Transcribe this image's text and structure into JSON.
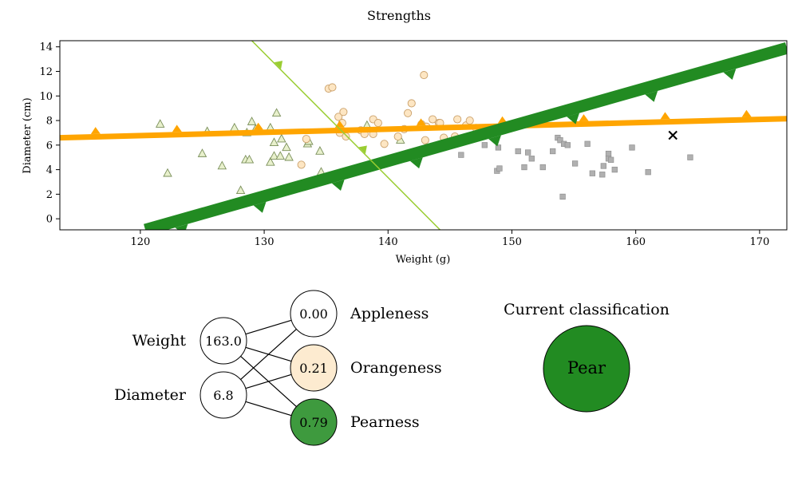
{
  "colors": {
    "apple": "#9acd32",
    "orange": "#ffa500",
    "pear": "#228b22",
    "apple_fill": "#e8f0cc",
    "orange_fill": "#fde6c3",
    "pear_fill": "#b0b0b0",
    "orangeness_node": "#fdebd0",
    "pearness_node": "#3e9a3e",
    "classification": "#228b22"
  },
  "chart_data": {
    "type": "scatter",
    "title": "Strengths",
    "xlabel": "Weight (g)",
    "ylabel": "Diameter (cm)",
    "xlim": [
      113.5,
      172.2
    ],
    "ylim": [
      -0.9,
      14.5
    ],
    "xticks": [
      120,
      130,
      140,
      150,
      160,
      170
    ],
    "yticks": [
      0,
      2,
      4,
      6,
      8,
      10,
      12,
      14
    ],
    "grid": false,
    "legend": "none",
    "series": [
      {
        "kind": "apple",
        "marker": "triangle",
        "points": [
          [
            121.6,
            7.7
          ],
          [
            122.2,
            3.7
          ],
          [
            125.0,
            5.3
          ],
          [
            125.4,
            7.1
          ],
          [
            126.6,
            4.3
          ],
          [
            127.6,
            7.4
          ],
          [
            128.1,
            2.3
          ],
          [
            128.5,
            4.8
          ],
          [
            128.6,
            7.0
          ],
          [
            128.8,
            4.8
          ],
          [
            129.0,
            7.9
          ],
          [
            129.3,
            7.3
          ],
          [
            130.5,
            4.6
          ],
          [
            130.5,
            7.4
          ],
          [
            130.8,
            5.1
          ],
          [
            130.8,
            6.2
          ],
          [
            131.0,
            8.6
          ],
          [
            131.3,
            5.1
          ],
          [
            131.4,
            6.5
          ],
          [
            131.8,
            5.8
          ],
          [
            132.0,
            5.0
          ],
          [
            133.5,
            6.1
          ],
          [
            133.6,
            6.3
          ],
          [
            134.5,
            5.5
          ],
          [
            134.6,
            3.8
          ],
          [
            138.3,
            7.6
          ],
          [
            141.0,
            6.4
          ]
        ]
      },
      {
        "kind": "orange",
        "marker": "circle",
        "points": [
          [
            133.0,
            4.4
          ],
          [
            133.4,
            6.5
          ],
          [
            135.2,
            10.6
          ],
          [
            135.5,
            10.7
          ],
          [
            136.0,
            8.3
          ],
          [
            136.1,
            7.0
          ],
          [
            136.3,
            7.8
          ],
          [
            136.4,
            8.7
          ],
          [
            136.6,
            6.7
          ],
          [
            137.8,
            7.2
          ],
          [
            138.1,
            6.9
          ],
          [
            138.8,
            6.9
          ],
          [
            138.8,
            8.1
          ],
          [
            139.2,
            7.8
          ],
          [
            139.7,
            6.1
          ],
          [
            140.8,
            6.7
          ],
          [
            141.3,
            7.3
          ],
          [
            141.6,
            8.6
          ],
          [
            141.9,
            9.4
          ],
          [
            142.7,
            7.7
          ],
          [
            142.9,
            11.7
          ],
          [
            143.0,
            6.4
          ],
          [
            143.1,
            7.5
          ],
          [
            143.6,
            8.1
          ],
          [
            144.1,
            7.8
          ],
          [
            144.2,
            7.8
          ],
          [
            144.5,
            6.6
          ],
          [
            145.4,
            6.7
          ],
          [
            145.6,
            8.1
          ],
          [
            146.3,
            7.6
          ],
          [
            146.6,
            8.0
          ],
          [
            147.1,
            7.4
          ]
        ]
      },
      {
        "kind": "pear",
        "marker": "square",
        "points": [
          [
            145.9,
            5.2
          ],
          [
            147.8,
            6.0
          ],
          [
            148.8,
            3.9
          ],
          [
            148.9,
            5.8
          ],
          [
            149.0,
            4.1
          ],
          [
            150.5,
            5.5
          ],
          [
            151.0,
            4.2
          ],
          [
            151.3,
            5.4
          ],
          [
            151.6,
            4.9
          ],
          [
            152.5,
            4.2
          ],
          [
            153.3,
            5.5
          ],
          [
            153.7,
            6.6
          ],
          [
            153.9,
            6.4
          ],
          [
            154.1,
            1.8
          ],
          [
            154.2,
            6.1
          ],
          [
            154.5,
            6.0
          ],
          [
            155.1,
            4.5
          ],
          [
            156.1,
            6.1
          ],
          [
            156.5,
            3.7
          ],
          [
            157.4,
            4.3
          ],
          [
            157.3,
            3.6
          ],
          [
            157.8,
            5.3
          ],
          [
            157.8,
            4.9
          ],
          [
            158.0,
            4.8
          ],
          [
            158.3,
            4.0
          ],
          [
            159.7,
            5.8
          ],
          [
            161.0,
            3.8
          ],
          [
            164.4,
            5.0
          ]
        ]
      }
    ],
    "query_point": [
      163.0,
      6.8
    ],
    "boundaries": [
      {
        "kind": "orange",
        "x": [
          113.5,
          172.2
        ],
        "y": [
          6.6,
          8.15
        ],
        "width": 7,
        "arrows_up": true
      },
      {
        "kind": "pear",
        "x": [
          120.4,
          172.2
        ],
        "y": [
          -0.9,
          13.9
        ],
        "width": 15,
        "arrows_up": false
      },
      {
        "kind": "apple",
        "x": [
          129.0,
          144.2
        ],
        "y": [
          14.5,
          -0.9
        ],
        "width": 1.5,
        "arrows_up": true
      }
    ]
  },
  "network": {
    "inputs": [
      {
        "name": "Weight",
        "value": "163.0"
      },
      {
        "name": "Diameter",
        "value": "6.8"
      }
    ],
    "outputs": [
      {
        "name": "Appleness",
        "value": "0.00"
      },
      {
        "name": "Orangeness",
        "value": "0.21"
      },
      {
        "name": "Pearness",
        "value": "0.79"
      }
    ]
  },
  "classification": {
    "title": "Current classification",
    "label": "Pear"
  }
}
